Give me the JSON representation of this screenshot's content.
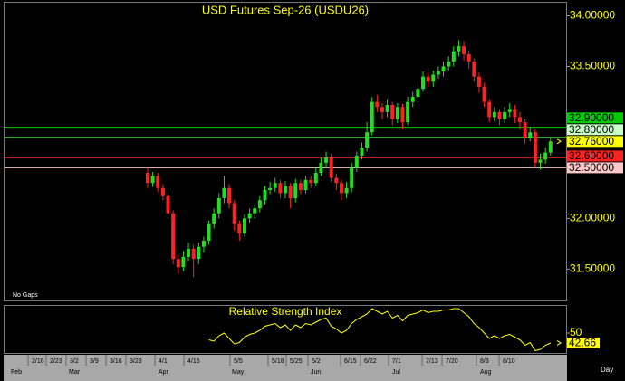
{
  "chart_data": [
    {
      "type": "candlestick",
      "title": "USD Futures Sep-26 (USDU26)",
      "note": "No Gaps",
      "up_color": "#22dd22",
      "down_color": "#ff2222",
      "ylim": [
        31.19,
        34.13
      ],
      "yticks": [
        {
          "value": 34,
          "label": "34.00000"
        },
        {
          "value": 33.5,
          "label": "33.50000"
        },
        {
          "value": 32,
          "label": "32.00000"
        },
        {
          "value": 31.5,
          "label": "31.50000"
        }
      ],
      "levels": [
        {
          "value": 32.9,
          "label": "32.90000",
          "color": "#00cc00",
          "label_color": "#00cc00"
        },
        {
          "value": 32.8,
          "label": "32.80000",
          "color": "#55ff55",
          "label_color": "#c8ffc8"
        },
        {
          "value": 32.6,
          "label": "32.60000",
          "color": "#ff2222",
          "label_color": "#ff2222"
        },
        {
          "value": 32.5,
          "label": "32.50000",
          "color": "#ffc8c8",
          "label_color": "#ffc8c8"
        }
      ],
      "last_price": {
        "value": 32.76,
        "label": "32.76000",
        "color": "#ffff00"
      },
      "ohlc": [
        [
          32.45,
          32.5,
          32.3,
          32.35
        ],
        [
          32.35,
          32.46,
          32.31,
          32.42
        ],
        [
          32.42,
          32.45,
          32.26,
          32.3
        ],
        [
          32.3,
          32.34,
          32.18,
          32.22
        ],
        [
          32.22,
          32.25,
          32.0,
          32.05
        ],
        [
          32.05,
          32.08,
          31.55,
          31.6
        ],
        [
          31.6,
          31.64,
          31.45,
          31.52
        ],
        [
          31.52,
          31.68,
          31.48,
          31.62
        ],
        [
          31.62,
          31.76,
          31.58,
          31.7
        ],
        [
          31.7,
          31.74,
          31.42,
          31.6
        ],
        [
          31.6,
          31.76,
          31.55,
          31.72
        ],
        [
          31.72,
          31.82,
          31.66,
          31.78
        ],
        [
          31.78,
          31.98,
          31.74,
          31.95
        ],
        [
          31.95,
          32.1,
          31.9,
          32.05
        ],
        [
          32.05,
          32.25,
          32.0,
          32.2
        ],
        [
          32.2,
          32.42,
          32.15,
          32.3
        ],
        [
          32.3,
          32.34,
          32.1,
          32.15
        ],
        [
          32.15,
          32.18,
          31.88,
          31.95
        ],
        [
          31.95,
          31.98,
          31.78,
          31.85
        ],
        [
          31.85,
          32.04,
          31.82,
          32.0
        ],
        [
          32.0,
          32.1,
          31.96,
          32.05
        ],
        [
          32.05,
          32.14,
          32.0,
          32.1
        ],
        [
          32.1,
          32.22,
          32.06,
          32.18
        ],
        [
          32.18,
          32.32,
          32.14,
          32.28
        ],
        [
          32.28,
          32.36,
          32.24,
          32.3
        ],
        [
          32.3,
          32.4,
          32.26,
          32.35
        ],
        [
          32.35,
          32.38,
          32.2,
          32.25
        ],
        [
          32.25,
          32.37,
          32.2,
          32.32
        ],
        [
          32.32,
          32.35,
          32.1,
          32.2
        ],
        [
          32.2,
          32.39,
          32.16,
          32.35
        ],
        [
          32.35,
          32.38,
          32.24,
          32.28
        ],
        [
          32.28,
          32.42,
          32.25,
          32.38
        ],
        [
          32.38,
          32.42,
          32.3,
          32.35
        ],
        [
          32.35,
          32.5,
          32.32,
          32.45
        ],
        [
          32.45,
          32.6,
          32.42,
          32.55
        ],
        [
          32.55,
          32.66,
          32.5,
          32.6
        ],
        [
          32.6,
          32.64,
          32.36,
          32.4
        ],
        [
          32.4,
          32.44,
          32.28,
          32.35
        ],
        [
          32.35,
          32.38,
          32.18,
          32.25
        ],
        [
          32.25,
          32.36,
          32.2,
          32.3
        ],
        [
          32.3,
          32.55,
          32.26,
          32.5
        ],
        [
          32.5,
          32.66,
          32.46,
          32.62
        ],
        [
          32.62,
          32.75,
          32.58,
          32.7
        ],
        [
          32.7,
          32.95,
          32.66,
          32.85
        ],
        [
          32.85,
          33.2,
          32.82,
          33.15
        ],
        [
          33.15,
          33.22,
          33.05,
          33.1
        ],
        [
          33.1,
          33.14,
          32.98,
          33.05
        ],
        [
          33.05,
          33.18,
          33.0,
          33.12
        ],
        [
          33.12,
          33.15,
          32.92,
          32.98
        ],
        [
          32.98,
          33.14,
          32.94,
          33.1
        ],
        [
          33.1,
          33.13,
          32.88,
          32.95
        ],
        [
          32.95,
          33.2,
          32.92,
          33.15
        ],
        [
          33.15,
          33.25,
          33.1,
          33.2
        ],
        [
          33.2,
          33.32,
          33.15,
          33.28
        ],
        [
          33.28,
          33.45,
          33.25,
          33.4
        ],
        [
          33.4,
          33.44,
          33.3,
          33.35
        ],
        [
          33.35,
          33.46,
          33.3,
          33.42
        ],
        [
          33.42,
          33.5,
          33.38,
          33.45
        ],
        [
          33.45,
          33.55,
          33.4,
          33.5
        ],
        [
          33.5,
          33.6,
          33.46,
          33.55
        ],
        [
          33.55,
          33.7,
          33.5,
          33.65
        ],
        [
          33.65,
          33.76,
          33.6,
          33.7
        ],
        [
          33.7,
          33.75,
          33.56,
          33.62
        ],
        [
          33.62,
          33.66,
          33.48,
          33.55
        ],
        [
          33.55,
          33.58,
          33.35,
          33.4
        ],
        [
          33.4,
          33.44,
          33.24,
          33.3
        ],
        [
          33.3,
          33.34,
          33.1,
          33.15
        ],
        [
          33.15,
          33.18,
          32.95,
          33.0
        ],
        [
          33.0,
          33.1,
          32.96,
          33.05
        ],
        [
          33.05,
          33.08,
          32.92,
          32.98
        ],
        [
          32.98,
          33.1,
          32.94,
          33.05
        ],
        [
          33.05,
          33.14,
          33.0,
          33.08
        ],
        [
          33.08,
          33.12,
          32.94,
          33.0
        ],
        [
          33.0,
          33.05,
          32.88,
          32.95
        ],
        [
          32.95,
          32.98,
          32.74,
          32.8
        ],
        [
          32.8,
          32.9,
          32.76,
          32.85
        ],
        [
          32.85,
          32.88,
          32.5,
          32.55
        ],
        [
          32.55,
          32.64,
          32.48,
          32.58
        ],
        [
          32.58,
          32.7,
          32.54,
          32.65
        ],
        [
          32.65,
          32.8,
          32.62,
          32.76
        ]
      ]
    },
    {
      "type": "line",
      "title": "Relative Strength Index",
      "color": "#ffff00",
      "ylim": [
        35.3,
        70
      ],
      "yticks": [
        50
      ],
      "values": [
        null,
        null,
        null,
        null,
        null,
        null,
        null,
        null,
        null,
        null,
        null,
        null,
        45,
        44,
        48,
        50,
        46,
        42,
        43,
        47,
        49,
        50,
        52,
        55,
        56,
        57,
        54,
        56,
        52,
        56,
        54,
        57,
        56,
        58,
        60,
        61,
        55,
        53,
        50,
        52,
        57,
        60,
        62,
        64,
        68,
        66,
        64,
        66,
        61,
        63,
        59,
        63,
        64,
        65,
        67,
        65,
        66,
        66,
        67,
        67,
        68,
        68,
        65,
        62,
        57,
        54,
        50,
        46,
        48,
        46,
        48,
        49,
        47,
        45,
        41,
        43,
        37,
        38,
        41,
        42.66
      ]
    }
  ],
  "x_axis": {
    "ticks": [
      "2/16",
      "2/23",
      "3/2",
      "3/9",
      "3/16",
      "3/23",
      "4/1",
      "4/16",
      "5/5",
      "5/18",
      "5/25",
      "6/2",
      "6/15",
      "6/22",
      "7/1",
      "7/13",
      "7/20",
      "8/3",
      "8/10"
    ],
    "months": [
      "Feb",
      "Mar",
      "Apr",
      "May",
      "Jun",
      "Jul",
      "Aug"
    ],
    "interval": "Day"
  }
}
